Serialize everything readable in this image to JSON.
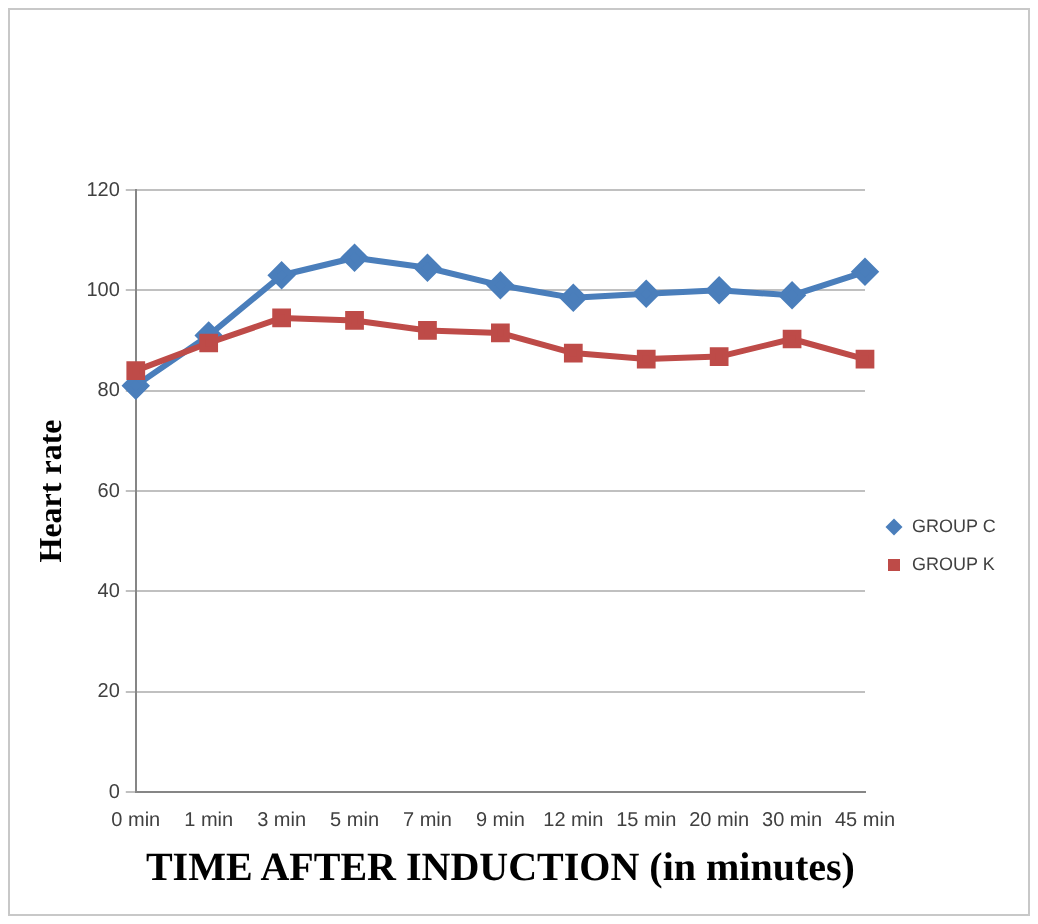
{
  "chart_data": {
    "type": "line",
    "xlabel": "TIME AFTER INDUCTION (in minutes)",
    "ylabel": "Heart rate",
    "categories": [
      "0 min",
      "1 min",
      "3 min",
      "5 min",
      "7 min",
      "9 min",
      "12 min",
      "15 min",
      "20 min",
      "30 min",
      "45 min"
    ],
    "series": [
      {
        "name": "GROUP C",
        "color": "#4a7ebb",
        "marker": "diamond",
        "values": [
          81,
          91,
          103,
          106.5,
          104.5,
          101,
          98.5,
          99.3,
          100,
          99,
          103.7
        ]
      },
      {
        "name": "GROUP K",
        "color": "#be4b48",
        "marker": "square",
        "values": [
          84,
          89.5,
          94.5,
          94,
          92,
          91.5,
          87.5,
          86.3,
          86.8,
          90.3,
          86.3
        ]
      }
    ],
    "ylim": [
      0,
      120
    ],
    "yticks": [
      0,
      20,
      40,
      60,
      80,
      100,
      120
    ],
    "grid": "y",
    "legend": "right"
  }
}
